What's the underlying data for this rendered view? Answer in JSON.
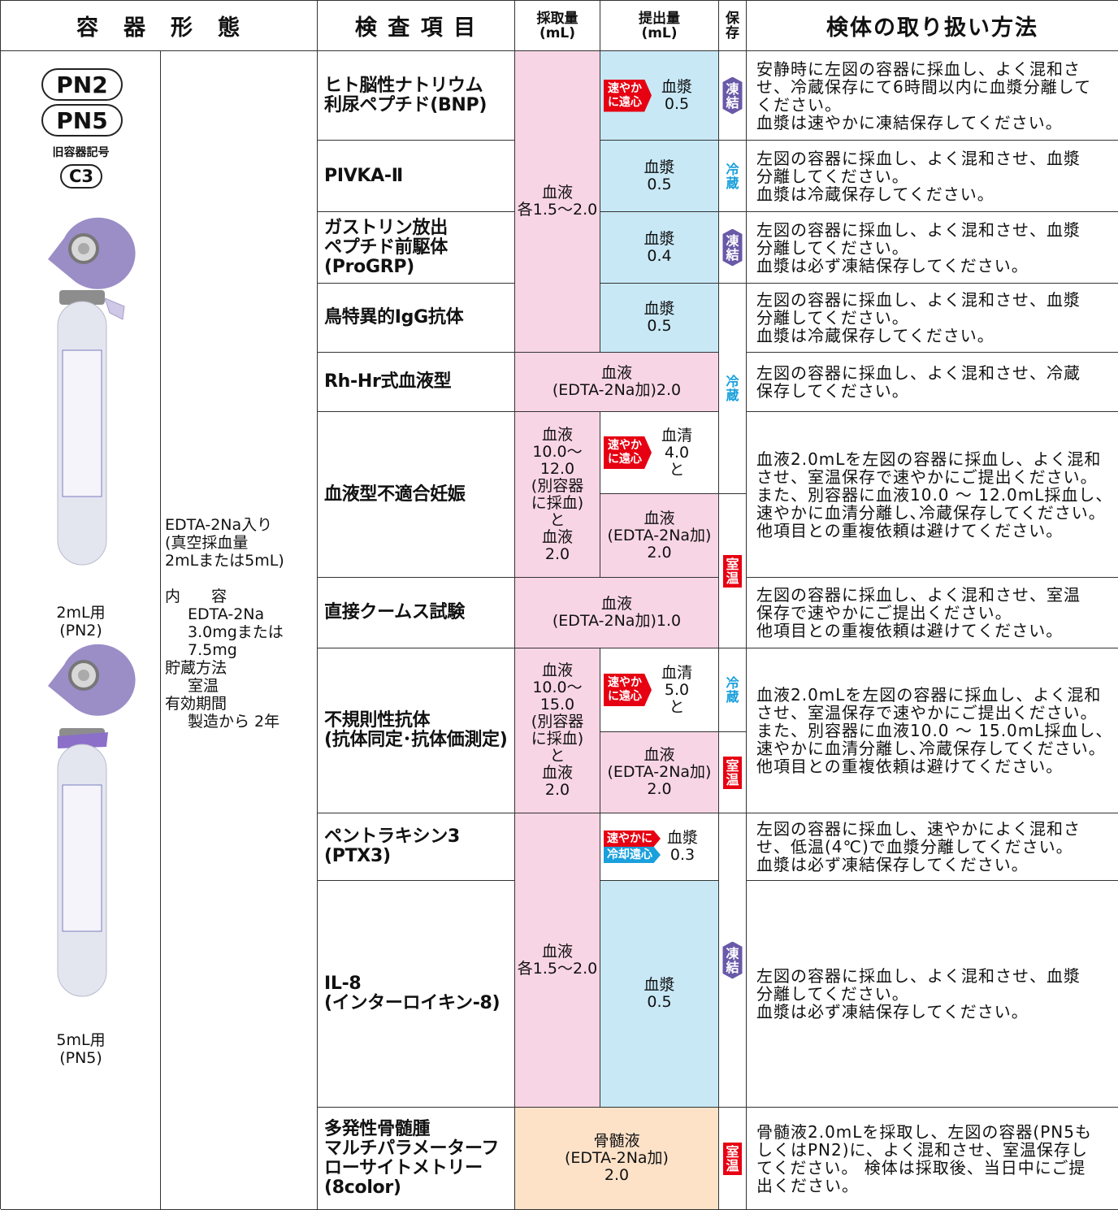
{
  "header": {
    "container": "容　器　形　態",
    "test_item": "検 査 項 目",
    "collection": [
      "採取量",
      "(mL)"
    ],
    "submission": [
      "提出量",
      "(mL)"
    ],
    "storage": [
      "保",
      "存"
    ],
    "handling": "検体の取り扱い方法"
  },
  "container": {
    "codes": [
      "PN2",
      "PN5"
    ],
    "old_label": "旧容器記号",
    "old_code": "C3",
    "tube_labels": [
      [
        "2mL用",
        "(PN2)"
      ],
      [
        "5mL用",
        "(PN5)"
      ]
    ],
    "description": {
      "intro": [
        "EDTA-2Na入り",
        "(真空採血量",
        "2mLまたは5mL)"
      ],
      "items": [
        {
          "label": "内　　容",
          "lines": [
            "EDTA-2Na",
            "3.0mgまたは",
            "7.5mg"
          ]
        },
        {
          "label": "貯蔵方法",
          "lines": [
            "室温"
          ]
        },
        {
          "label": "有効期間",
          "lines": [
            "製造から 2年"
          ]
        }
      ]
    }
  },
  "rows": [
    {
      "test": [
        "ヒト脳性ナトリウム",
        "利尿ペプチド(BNP)"
      ],
      "handling": [
        "安静時に左図の容器に採血し、よく混和さ",
        "せ、冷蔵保存にて6時間以内に血漿分離して",
        "ください。",
        "血漿は速やかに凍結保存してください。"
      ]
    },
    {
      "test": [
        "PIVKA-Ⅱ"
      ],
      "handling": [
        "左図の容器に採血し、よく混和させ、血漿",
        "分離してください。",
        "血漿は冷蔵保存してください。"
      ]
    },
    {
      "test": [
        "ガストリン放出",
        "ペプチド前駆体",
        "(ProGRP)"
      ],
      "handling": [
        "左図の容器に採血し、よく混和させ、血漿",
        "分離してください。",
        "血漿は必ず凍結保存してください。"
      ]
    },
    {
      "test": [
        "鳥特異的IgG抗体"
      ],
      "handling": [
        "左図の容器に採血し、よく混和させ、血漿",
        "分離してください。",
        "血漿は冷蔵保存してください。"
      ]
    },
    {
      "test": [
        "Rh-Hr式血液型"
      ],
      "handling": [
        "左図の容器に採血し、よく混和させ、冷蔵",
        "保存してください。"
      ]
    },
    {
      "test": [
        "血液型不適合妊娠"
      ],
      "handling": [
        "血液2.0mLを左図の容器に採血し、よく混和",
        "させ、室温保存で速やかにご提出ください。",
        "また、別容器に血液10.0 ～ 12.0mL採血し、",
        "速やかに血清分離し､冷蔵保存してください。",
        "他項目との重複依頼は避けてください。"
      ]
    },
    {
      "test": [
        "直接クームス試験"
      ],
      "handling": [
        "左図の容器に採血し、よく混和させ、室温",
        "保存で速やかにご提出ください。",
        "他項目との重複依頼は避けてください。"
      ]
    },
    {
      "test": [
        "不規則性抗体",
        "(抗体同定･抗体価測定)"
      ],
      "handling": [
        "血液2.0mLを左図の容器に採血し、よく混和",
        "させ、室温保存で速やかにご提出ください。",
        "また、別容器に血液10.0 ～ 15.0mL採血し、",
        "速やかに血清分離し､冷蔵保存してください。",
        "他項目との重複依頼は避けてください。"
      ]
    },
    {
      "test": [
        "ペントラキシン3",
        "(PTX3)"
      ],
      "handling": [
        "左図の容器に採血し、速やかによく混和さ",
        "せ、低温(4℃)で血漿分離してください。",
        "血漿は必ず凍結保存してください。"
      ]
    },
    {
      "test": [
        "IL-8",
        "(インターロイキン-8)"
      ],
      "handling": [
        "左図の容器に採血し、よく混和させ、血漿",
        "分離してください。",
        "血漿は必ず凍結保存してください。"
      ]
    },
    {
      "test": [
        "多発性骨髄腫",
        "マルチパラメーターフ",
        "ローサイトメトリー",
        "(8color)"
      ],
      "handling": [
        "骨髄液2.0mLを採取し、左図の容器(PN5も",
        "しくはPN2)に、よく混和させ、室温保存し",
        "てください。 検体は採取後、当日中にご提",
        "出ください。"
      ]
    }
  ],
  "collection": [
    [
      "血液",
      "各1.5～2.0"
    ],
    [
      "血液",
      "(EDTA-2Na加)2.0"
    ],
    [
      "血液",
      "10.0～",
      "12.0",
      "(別容器",
      "に採血)",
      "と",
      "血液",
      "2.0"
    ],
    [
      "血液",
      "(EDTA-2Na加)1.0"
    ],
    [
      "血液",
      "10.0～",
      "15.0",
      "(別容器",
      "に採血)",
      "と",
      "血液",
      "2.0"
    ],
    [
      "血液",
      "各1.5～2.0"
    ],
    [
      "骨髄液",
      "(EDTA-2Na加)",
      "2.0"
    ]
  ],
  "submission": [
    {
      "lines": [
        "血漿",
        "0.5"
      ],
      "badge": [
        "速やか",
        "に遠心"
      ]
    },
    {
      "lines": [
        "血漿",
        "0.5"
      ]
    },
    {
      "lines": [
        "血漿",
        "0.4"
      ]
    },
    {
      "lines": [
        "血漿",
        "0.5"
      ]
    },
    {
      "lines": [
        "血清",
        "4.0",
        "と"
      ],
      "badge": [
        "速やか",
        "に遠心"
      ]
    },
    {
      "lines": [
        "血液",
        "(EDTA-2Na加)",
        "2.0"
      ]
    },
    {
      "lines": [
        "血清",
        "5.0",
        "と"
      ],
      "badge": [
        "速やか",
        "に遠心"
      ]
    },
    {
      "lines": [
        "血液",
        "(EDTA-2Na加)",
        "2.0"
      ]
    },
    {
      "lines": [
        "血漿",
        "0.3"
      ],
      "badge": [
        "速やかに",
        "冷却遠心"
      ]
    },
    {
      "lines": [
        "血漿",
        "0.5"
      ]
    }
  ],
  "storage": [
    [
      "凍",
      "結"
    ],
    [
      "冷",
      "蔵"
    ],
    [
      "凍",
      "結"
    ],
    [
      "冷",
      "蔵"
    ],
    [
      "室",
      "温"
    ],
    [
      "冷",
      "蔵"
    ],
    [
      "室",
      "温"
    ],
    [
      "凍",
      "結"
    ],
    [
      "室",
      "温"
    ]
  ]
}
